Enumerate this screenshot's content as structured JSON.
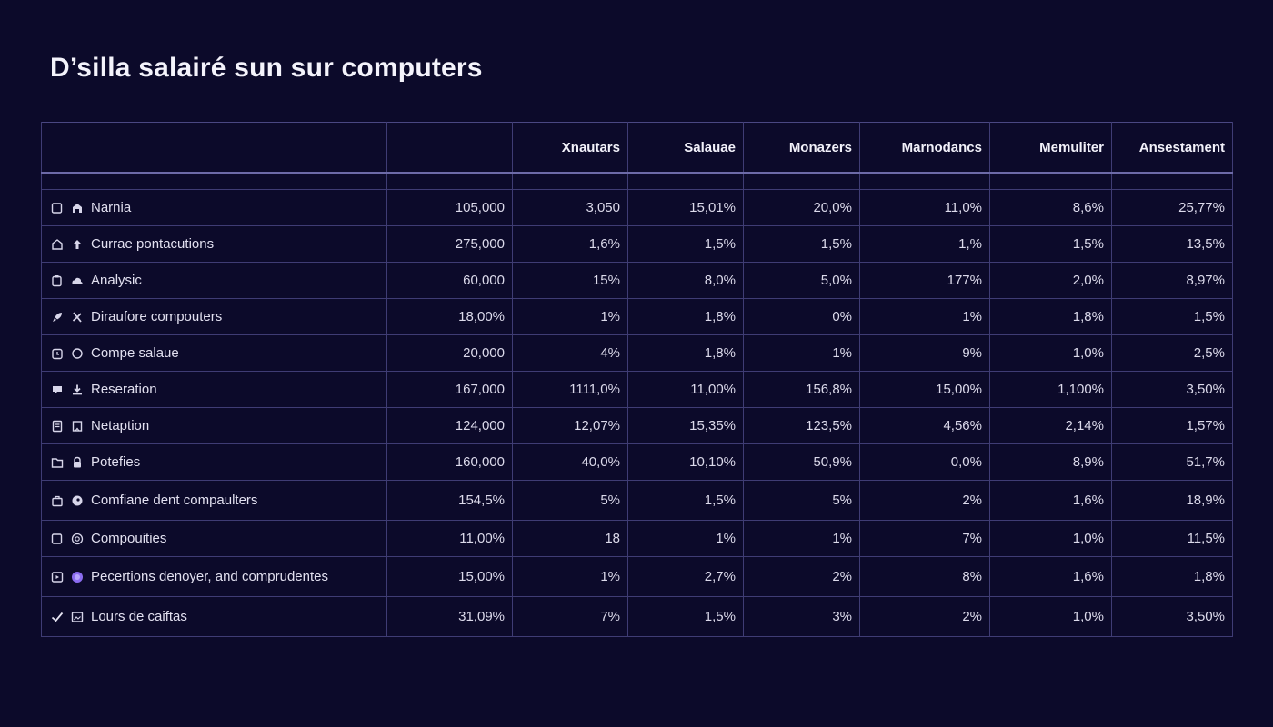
{
  "title": "D’silla salairé sun sur computers",
  "table": {
    "headers": [
      "",
      "",
      "Xnautars",
      "Salauae",
      "Monazers",
      "Marnodancs",
      "Memuliter",
      "Ansestament"
    ],
    "rows": [
      {
        "label": "Narnia",
        "icons": [
          "checkbox-icon",
          "home-icon"
        ],
        "values": [
          "105,000",
          "3,050",
          "15,01%",
          "20,0%",
          "11,0%",
          "8,6%",
          "25,77%"
        ]
      },
      {
        "label": "Currae pontacutions",
        "icons": [
          "briefcase-icon",
          "arrow-up-icon"
        ],
        "values": [
          "275,000",
          "1,6%",
          "1,5%",
          "1,5%",
          "1,%",
          "1,5%",
          "13,5%"
        ]
      },
      {
        "label": "Analysic",
        "icons": [
          "clipboard-icon",
          "cloud-icon"
        ],
        "values": [
          "60,000",
          "15%",
          "8,0%",
          "5,0%",
          "177%",
          "2,0%",
          "8,97%"
        ]
      },
      {
        "label": "Diraufore compouters",
        "icons": [
          "rocket-icon",
          "tools-icon"
        ],
        "values": [
          "18,00%",
          "1%",
          "1,8%",
          "0%",
          "1%",
          "1,8%",
          "1,5%"
        ]
      },
      {
        "label": "Compe salaue",
        "icons": [
          "calendar-icon",
          "circle-icon"
        ],
        "values": [
          "20,000",
          "4%",
          "1,8%",
          "1%",
          "9%",
          "1,0%",
          "2,5%"
        ]
      },
      {
        "label": "Reseration",
        "icons": [
          "chat-icon",
          "download-icon"
        ],
        "values": [
          "167,000",
          "1111,0%",
          "11,00%",
          "156,8%",
          "15,00%",
          "1,100%",
          "3,50%"
        ]
      },
      {
        "label": "Netaption",
        "icons": [
          "document-icon",
          "bookmark-icon"
        ],
        "values": [
          "124,000",
          "12,07%",
          "15,35%",
          "123,5%",
          "4,56%",
          "2,14%",
          "1,57%"
        ]
      },
      {
        "label": "Potefies",
        "icons": [
          "folder-icon",
          "lock-icon"
        ],
        "values": [
          "160,000",
          "40,0%",
          "10,10%",
          "50,9%",
          "0,0%",
          "8,9%",
          "51,7%"
        ]
      },
      {
        "label": "Comfiane dent compaulters",
        "icons": [
          "bag-icon",
          "dot-icon"
        ],
        "values": [
          "154,5%",
          "5%",
          "1,5%",
          "5%",
          "2%",
          "1,6%",
          "18,9%"
        ]
      },
      {
        "label": "Compouities",
        "icons": [
          "checkbox-icon",
          "target-icon"
        ],
        "values": [
          "11,00%",
          "18",
          "1%",
          "1%",
          "7%",
          "1,0%",
          "11,5%"
        ]
      },
      {
        "label": "Pecertions denoyer, and comprudentes",
        "icons": [
          "media-icon",
          "purple-dot-icon"
        ],
        "values": [
          "15,00%",
          "1%",
          "2,7%",
          "2%",
          "8%",
          "1,6%",
          "1,8%"
        ]
      },
      {
        "label": "Lours de caiftas",
        "icons": [
          "check-icon",
          "image-icon"
        ],
        "values": [
          "31,09%",
          "7%",
          "1,5%",
          "3%",
          "2%",
          "1,0%",
          "3,50%"
        ]
      }
    ]
  },
  "colors": {
    "background": "#0c0a2a",
    "grid": "#3f3c74",
    "accent": "#8b6cf0"
  }
}
